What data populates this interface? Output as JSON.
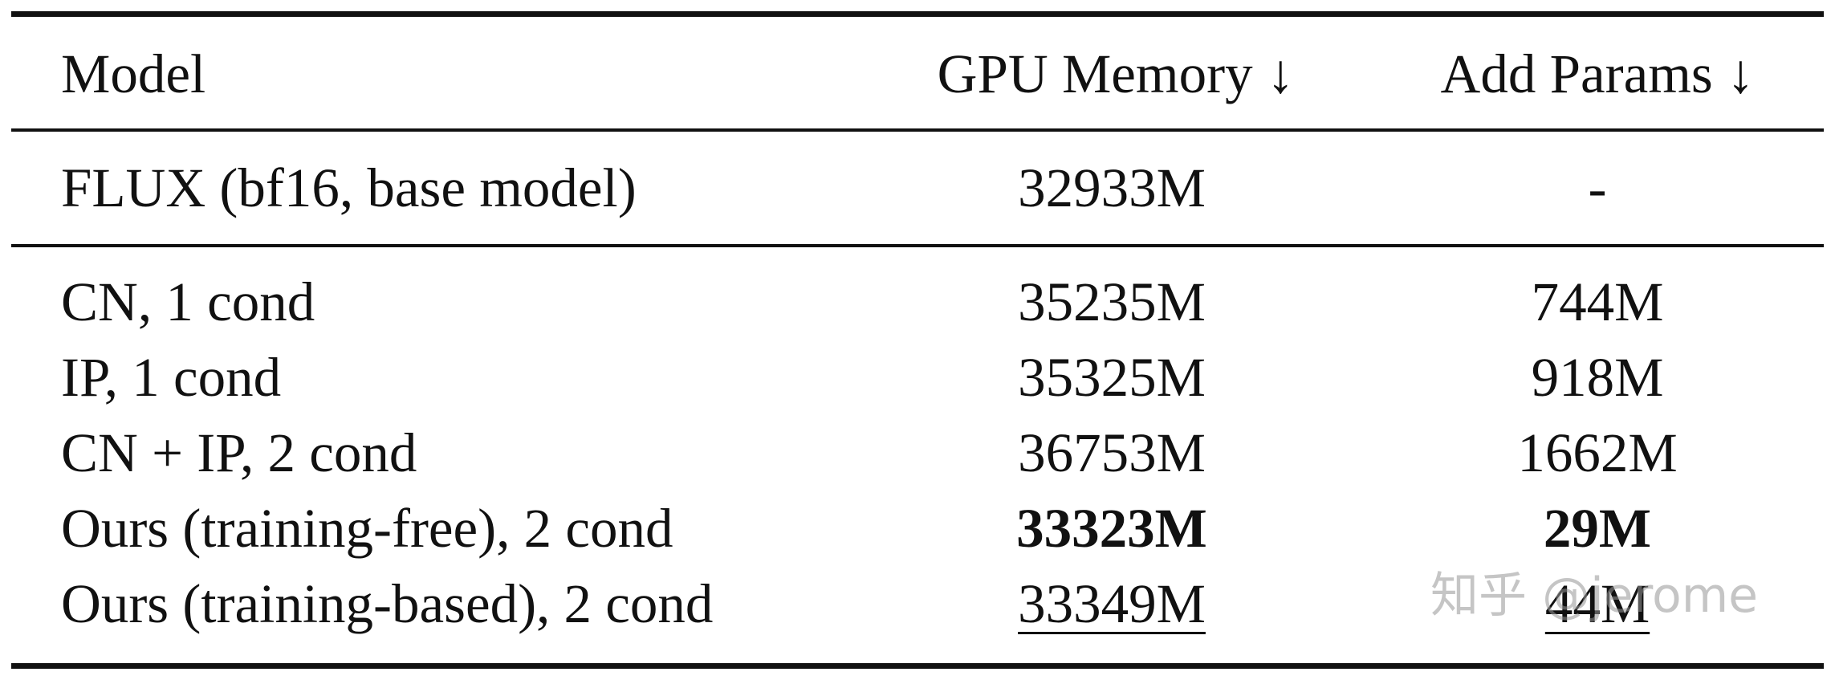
{
  "table": {
    "headers": {
      "model": "Model",
      "gpu_memory": "GPU Memory ↓",
      "add_params": "Add Params ↓"
    },
    "baseline": {
      "model": "FLUX (bf16, base model)",
      "gpu_memory": "32933M",
      "add_params": "-"
    },
    "rows": [
      {
        "model": "CN, 1 cond",
        "gpu_memory": "35235M",
        "add_params": "744M",
        "emphasis": "none"
      },
      {
        "model": "IP, 1 cond",
        "gpu_memory": "35325M",
        "add_params": "918M",
        "emphasis": "none"
      },
      {
        "model": "CN + IP, 2 cond",
        "gpu_memory": "36753M",
        "add_params": "1662M",
        "emphasis": "none"
      },
      {
        "model": "Ours (training-free), 2 cond",
        "gpu_memory": "33323M",
        "add_params": "29M",
        "emphasis": "bold"
      },
      {
        "model": "Ours (training-based), 2 cond",
        "gpu_memory": "33349M",
        "add_params": "44M",
        "emphasis": "underline"
      }
    ]
  },
  "watermark": "知乎 @jerome"
}
